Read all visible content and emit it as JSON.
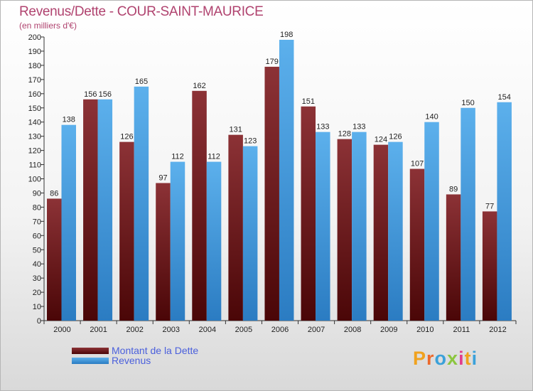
{
  "header": {
    "title": "Revenus/Dette - COUR-SAINT-MAURICE",
    "subtitle": "(en milliers d'€)"
  },
  "colors": {
    "dette": "#7a1a1d",
    "revenus": "#3d93dd",
    "title": "#b0436f",
    "legend_text": "#4a5fdc"
  },
  "legend": {
    "dette": "Montant de la Dette",
    "revenus": "Revenus"
  },
  "logo": {
    "letters": [
      "P",
      "r",
      "o",
      "x",
      "i",
      "t",
      "i"
    ],
    "colors": [
      "#f0a21e",
      "#ec6a2c",
      "#3ba1d9",
      "#8cc63f",
      "#e23d8d",
      "#f0a21e",
      "#3ba1d9"
    ]
  },
  "chart_data": {
    "type": "bar",
    "title": "Revenus/Dette - COUR-SAINT-MAURICE",
    "ylabel": "(en milliers d'€)",
    "xlabel": "",
    "ylim": [
      0,
      200
    ],
    "ytick_step": 10,
    "grid": false,
    "legend_position": "bottom-left",
    "categories": [
      "2000",
      "2001",
      "2002",
      "2003",
      "2004",
      "2005",
      "2006",
      "2007",
      "2008",
      "2009",
      "2010",
      "2011",
      "2012"
    ],
    "series": [
      {
        "name": "Montant de la Dette",
        "key": "dette",
        "values": [
          86,
          156,
          126,
          97,
          162,
          131,
          179,
          151,
          128,
          124,
          107,
          89,
          77
        ]
      },
      {
        "name": "Revenus",
        "key": "revenus",
        "values": [
          138,
          156,
          165,
          112,
          112,
          123,
          198,
          133,
          133,
          126,
          140,
          150,
          154
        ]
      }
    ]
  }
}
